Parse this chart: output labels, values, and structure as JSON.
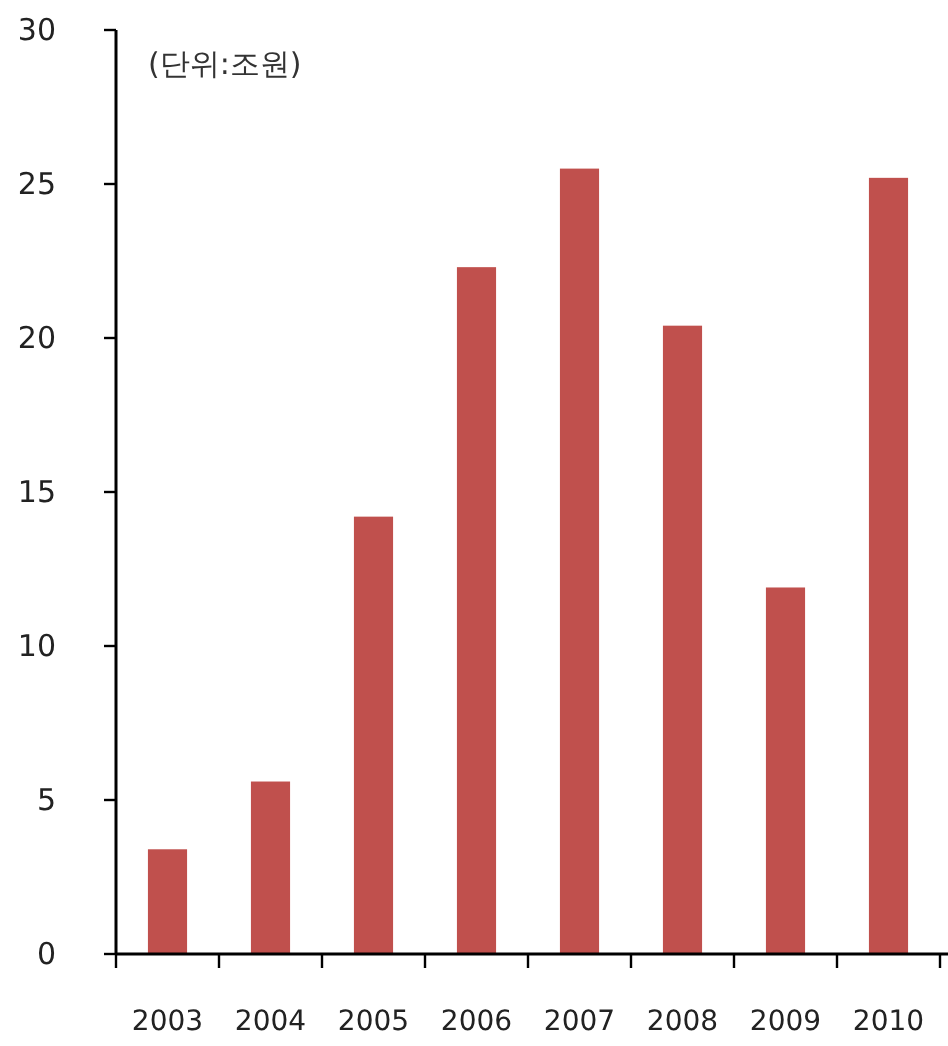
{
  "chart_data": {
    "type": "bar",
    "annotations": [
      "(단위:조원)"
    ],
    "categories": [
      "2003",
      "2004",
      "2005",
      "2006",
      "2007",
      "2008",
      "2009",
      "2010"
    ],
    "values": [
      3.4,
      5.6,
      14.2,
      22.3,
      25.5,
      20.4,
      11.9,
      25.2
    ],
    "color": "#c0504d",
    "ylim": [
      0,
      30
    ],
    "yticks": [
      0,
      5,
      10,
      15,
      20,
      25,
      30
    ],
    "grid": false
  }
}
